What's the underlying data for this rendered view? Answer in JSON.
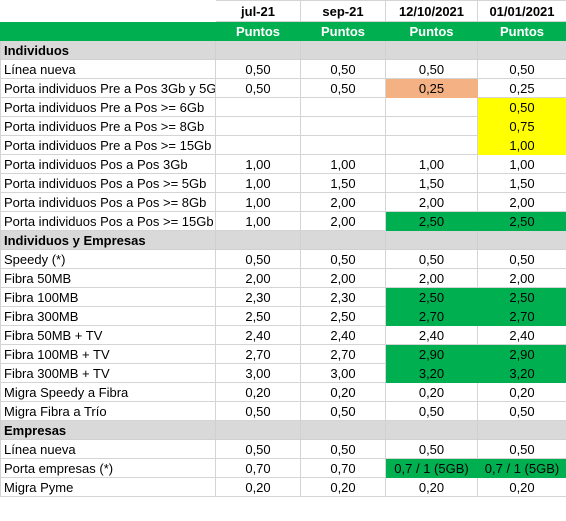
{
  "colors": {
    "green_header": "#00b050",
    "green_cell": "#00b050",
    "orange_cell": "#f4b183",
    "yellow_cell": "#ffff00",
    "section_gray": "#d9d9d9"
  },
  "columns": [
    "",
    "jul-21",
    "sep-21",
    "12/10/2021",
    "01/01/2021"
  ],
  "subheader": [
    "",
    "Puntos",
    "Puntos",
    "Puntos",
    "Puntos"
  ],
  "rows": [
    {
      "type": "section",
      "label": "Individuos"
    },
    {
      "type": "data",
      "label": "Línea nueva",
      "values": [
        "0,50",
        "0,50",
        "0,50",
        "0,50"
      ],
      "hl": [
        "",
        "",
        "",
        ""
      ]
    },
    {
      "type": "data",
      "label": "Porta individuos Pre a Pos 3Gb y 5G",
      "values": [
        "0,50",
        "0,50",
        "0,25",
        "0,25"
      ],
      "hl": [
        "",
        "",
        "orange",
        ""
      ]
    },
    {
      "type": "data",
      "label": "Porta individuos Pre a Pos >= 6Gb",
      "values": [
        "",
        "",
        "",
        "0,50"
      ],
      "hl": [
        "",
        "",
        "",
        "yellow"
      ]
    },
    {
      "type": "data",
      "label": "Porta individuos Pre a Pos >= 8Gb",
      "values": [
        "",
        "",
        "",
        "0,75"
      ],
      "hl": [
        "",
        "",
        "",
        "yellow"
      ]
    },
    {
      "type": "data",
      "label": "Porta individuos Pre a Pos >= 15Gb",
      "values": [
        "",
        "",
        "",
        "1,00"
      ],
      "hl": [
        "",
        "",
        "",
        "yellow"
      ]
    },
    {
      "type": "data",
      "label": "Porta individuos Pos a Pos 3Gb",
      "values": [
        "1,00",
        "1,00",
        "1,00",
        "1,00"
      ],
      "hl": [
        "",
        "",
        "",
        ""
      ]
    },
    {
      "type": "data",
      "label": "Porta individuos Pos a Pos >= 5Gb",
      "values": [
        "1,00",
        "1,50",
        "1,50",
        "1,50"
      ],
      "hl": [
        "",
        "",
        "",
        ""
      ]
    },
    {
      "type": "data",
      "label": "Porta individuos Pos a Pos >= 8Gb",
      "values": [
        "1,00",
        "2,00",
        "2,00",
        "2,00"
      ],
      "hl": [
        "",
        "",
        "",
        ""
      ]
    },
    {
      "type": "data",
      "label": "Porta individuos Pos a Pos >= 15Gb",
      "values": [
        "1,00",
        "2,00",
        "2,50",
        "2,50"
      ],
      "hl": [
        "",
        "",
        "green",
        "green"
      ]
    },
    {
      "type": "section",
      "label": "Individuos y Empresas"
    },
    {
      "type": "data",
      "label": "Speedy (*)",
      "values": [
        "0,50",
        "0,50",
        "0,50",
        "0,50"
      ],
      "hl": [
        "",
        "",
        "",
        ""
      ]
    },
    {
      "type": "data",
      "label": "Fibra 50MB",
      "values": [
        "2,00",
        "2,00",
        "2,00",
        "2,00"
      ],
      "hl": [
        "",
        "",
        "",
        ""
      ]
    },
    {
      "type": "data",
      "label": "Fibra 100MB",
      "values": [
        "2,30",
        "2,30",
        "2,50",
        "2,50"
      ],
      "hl": [
        "",
        "",
        "green",
        "green"
      ]
    },
    {
      "type": "data",
      "label": "Fibra 300MB",
      "values": [
        "2,50",
        "2,50",
        "2,70",
        "2,70"
      ],
      "hl": [
        "",
        "",
        "green",
        "green"
      ]
    },
    {
      "type": "data",
      "label": "Fibra 50MB + TV",
      "values": [
        "2,40",
        "2,40",
        "2,40",
        "2,40"
      ],
      "hl": [
        "",
        "",
        "",
        ""
      ]
    },
    {
      "type": "data",
      "label": "Fibra 100MB + TV",
      "values": [
        "2,70",
        "2,70",
        "2,90",
        "2,90"
      ],
      "hl": [
        "",
        "",
        "green",
        "green"
      ]
    },
    {
      "type": "data",
      "label": "Fibra 300MB + TV",
      "values": [
        "3,00",
        "3,00",
        "3,20",
        "3,20"
      ],
      "hl": [
        "",
        "",
        "green",
        "green"
      ]
    },
    {
      "type": "data",
      "label": "Migra Speedy a Fibra",
      "values": [
        "0,20",
        "0,20",
        "0,20",
        "0,20"
      ],
      "hl": [
        "",
        "",
        "",
        ""
      ]
    },
    {
      "type": "data",
      "label": "Migra Fibra a Trío",
      "values": [
        "0,50",
        "0,50",
        "0,50",
        "0,50"
      ],
      "hl": [
        "",
        "",
        "",
        ""
      ]
    },
    {
      "type": "section",
      "label": "Empresas"
    },
    {
      "type": "data",
      "label": "Línea nueva",
      "values": [
        "0,50",
        "0,50",
        "0,50",
        "0,50"
      ],
      "hl": [
        "",
        "",
        "",
        ""
      ]
    },
    {
      "type": "data",
      "label": "Porta empresas (*)",
      "values": [
        "0,70",
        "0,70",
        "0,7 / 1 (5GB)",
        "0,7 / 1 (5GB)"
      ],
      "hl": [
        "",
        "",
        "green",
        "green"
      ]
    },
    {
      "type": "data",
      "label": "Migra Pyme",
      "values": [
        "0,20",
        "0,20",
        "0,20",
        "0,20"
      ],
      "hl": [
        "",
        "",
        "",
        ""
      ]
    }
  ]
}
